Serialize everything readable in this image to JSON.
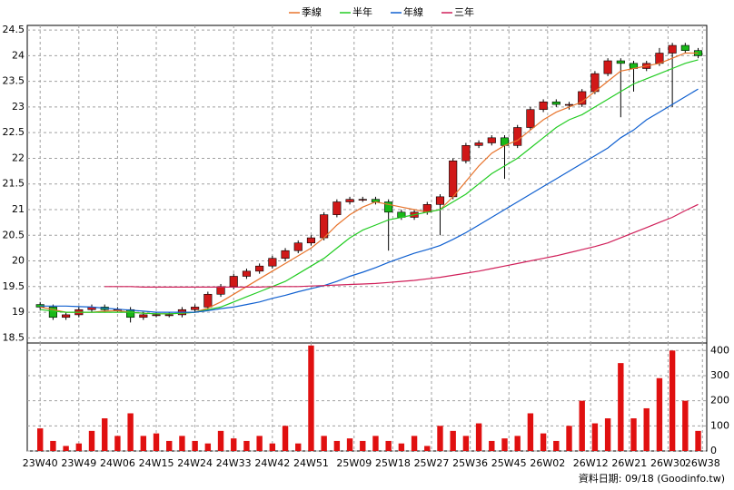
{
  "chart_data": [
    {
      "type": "candlestick",
      "x": [
        0,
        3,
        6,
        9,
        12,
        15,
        18,
        21,
        24,
        27,
        30,
        33,
        36,
        39,
        42,
        45,
        48,
        51,
        54,
        57,
        60,
        63,
        66,
        69,
        72,
        75,
        78,
        81,
        84,
        87,
        90,
        93,
        96,
        99,
        102,
        105,
        108,
        111,
        114,
        117,
        120,
        123,
        126,
        129,
        132,
        135,
        138,
        141,
        144,
        147,
        150,
        153
      ],
      "xlim": [
        -3,
        155
      ],
      "xticks": [
        {
          "value": 0,
          "label": "23W40"
        },
        {
          "value": 9,
          "label": "23W49"
        },
        {
          "value": 18,
          "label": "24W06"
        },
        {
          "value": 27,
          "label": "24W15"
        },
        {
          "value": 36,
          "label": "24W24"
        },
        {
          "value": 45,
          "label": "24W33"
        },
        {
          "value": 54,
          "label": "24W42"
        },
        {
          "value": 63,
          "label": "24W51"
        },
        {
          "value": 73,
          "label": "25W09"
        },
        {
          "value": 82,
          "label": "25W18"
        },
        {
          "value": 91,
          "label": "25W27"
        },
        {
          "value": 100,
          "label": "25W36"
        },
        {
          "value": 109,
          "label": "25W45"
        },
        {
          "value": 118,
          "label": "26W02"
        },
        {
          "value": 128,
          "label": "26W12"
        },
        {
          "value": 137,
          "label": "26W21"
        },
        {
          "value": 146,
          "label": "26W30"
        },
        {
          "value": 154,
          "label": "26W38"
        }
      ],
      "ylim": [
        18.4,
        24.59
      ],
      "yticks": [
        18.5,
        19,
        19.5,
        20,
        20.5,
        21,
        21.5,
        22,
        22.5,
        23,
        23.5,
        24,
        24.5
      ],
      "grid": true,
      "up_color": "#d01818",
      "down_color": "#18b818",
      "open": [
        19.15,
        19.1,
        18.9,
        18.95,
        19.05,
        19.1,
        19.05,
        19.05,
        18.9,
        18.95,
        18.95,
        18.95,
        19.05,
        19.1,
        19.35,
        19.5,
        19.7,
        19.8,
        19.9,
        20.05,
        20.2,
        20.35,
        20.45,
        20.9,
        21.15,
        21.2,
        21.2,
        21.15,
        20.95,
        20.85,
        20.95,
        21.1,
        21.25,
        21.95,
        22.25,
        22.3,
        22.4,
        22.25,
        22.6,
        22.95,
        23.1,
        23.05,
        23.05,
        23.3,
        23.65,
        23.9,
        23.85,
        23.75,
        23.85,
        24.05,
        24.2,
        24.1
      ],
      "high": [
        19.2,
        19.15,
        19.0,
        19.1,
        19.15,
        19.15,
        19.1,
        19.1,
        19.0,
        19.0,
        19.0,
        19.1,
        19.15,
        19.4,
        19.55,
        19.75,
        19.85,
        19.95,
        20.1,
        20.25,
        20.4,
        20.5,
        20.95,
        21.2,
        21.25,
        21.25,
        21.25,
        21.2,
        21.0,
        21.0,
        21.15,
        21.3,
        22.0,
        22.3,
        22.35,
        22.45,
        22.45,
        22.65,
        23.0,
        23.15,
        23.15,
        23.1,
        23.35,
        23.7,
        23.95,
        23.95,
        23.9,
        23.9,
        24.15,
        24.25,
        24.25,
        24.15
      ],
      "low": [
        19.05,
        18.85,
        18.85,
        18.9,
        19.0,
        19.0,
        19.0,
        18.8,
        18.85,
        18.9,
        18.9,
        18.9,
        19.0,
        19.05,
        19.3,
        19.45,
        19.65,
        19.75,
        19.85,
        20.0,
        20.15,
        20.3,
        20.4,
        20.85,
        21.1,
        21.15,
        21.1,
        20.2,
        20.8,
        20.8,
        20.9,
        20.5,
        21.2,
        21.9,
        22.2,
        22.25,
        21.6,
        22.2,
        22.55,
        22.9,
        23.0,
        22.95,
        23.0,
        23.25,
        23.6,
        22.8,
        23.3,
        23.7,
        23.8,
        23.0,
        24.05,
        23.95
      ],
      "close": [
        19.1,
        18.9,
        18.95,
        19.05,
        19.1,
        19.05,
        19.05,
        18.9,
        18.95,
        18.95,
        18.95,
        19.05,
        19.1,
        19.35,
        19.5,
        19.7,
        19.8,
        19.9,
        20.05,
        20.2,
        20.35,
        20.45,
        20.9,
        21.15,
        21.2,
        21.2,
        21.15,
        20.95,
        20.85,
        20.95,
        21.1,
        21.25,
        21.95,
        22.25,
        22.3,
        22.4,
        22.25,
        22.6,
        22.95,
        23.1,
        23.05,
        23.05,
        23.3,
        23.65,
        23.9,
        23.85,
        23.75,
        23.85,
        24.05,
        24.2,
        24.1,
        24.0
      ],
      "series": [
        {
          "name": "季線",
          "color": "#e8742c",
          "values": [
            19.1,
            19.05,
            19.0,
            19.0,
            19.0,
            19.02,
            19.03,
            19.0,
            18.98,
            18.97,
            18.97,
            18.98,
            19.0,
            19.08,
            19.2,
            19.35,
            19.5,
            19.65,
            19.8,
            19.95,
            20.1,
            20.25,
            20.45,
            20.7,
            20.9,
            21.05,
            21.15,
            21.1,
            21.05,
            21.0,
            20.95,
            21.0,
            21.25,
            21.55,
            21.85,
            22.1,
            22.25,
            22.35,
            22.55,
            22.75,
            22.9,
            23.0,
            23.1,
            23.3,
            23.5,
            23.7,
            23.75,
            23.8,
            23.85,
            23.95,
            24.05,
            24.05
          ]
        },
        {
          "name": "半年",
          "color": "#22cc22",
          "values": [
            19.05,
            19.02,
            19.0,
            19.0,
            19.0,
            19.0,
            19.0,
            19.0,
            18.98,
            18.97,
            18.97,
            18.98,
            19.0,
            19.05,
            19.1,
            19.2,
            19.3,
            19.4,
            19.5,
            19.6,
            19.75,
            19.9,
            20.05,
            20.25,
            20.45,
            20.6,
            20.7,
            20.8,
            20.85,
            20.9,
            20.95,
            21.0,
            21.15,
            21.3,
            21.5,
            21.7,
            21.85,
            22.0,
            22.2,
            22.4,
            22.6,
            22.75,
            22.85,
            23.0,
            23.15,
            23.3,
            23.45,
            23.55,
            23.65,
            23.75,
            23.85,
            23.92
          ]
        },
        {
          "name": "年線",
          "color": "#1060d0",
          "values": [
            19.12,
            19.12,
            19.12,
            19.11,
            19.1,
            19.08,
            19.06,
            19.04,
            19.02,
            19.0,
            19.0,
            19.0,
            19.0,
            19.03,
            19.07,
            19.1,
            19.15,
            19.2,
            19.27,
            19.33,
            19.4,
            19.46,
            19.52,
            19.6,
            19.7,
            19.78,
            19.87,
            19.97,
            20.06,
            20.15,
            20.22,
            20.3,
            20.42,
            20.55,
            20.7,
            20.85,
            21.0,
            21.15,
            21.3,
            21.45,
            21.6,
            21.75,
            21.9,
            22.05,
            22.2,
            22.4,
            22.55,
            22.75,
            22.9,
            23.05,
            23.2,
            23.35
          ]
        },
        {
          "name": "三年",
          "color": "#d0205a",
          "values": [
            null,
            null,
            null,
            null,
            null,
            19.5,
            19.5,
            19.5,
            19.49,
            19.49,
            19.49,
            19.49,
            19.49,
            19.49,
            19.49,
            19.49,
            19.49,
            19.49,
            19.5,
            19.5,
            19.5,
            19.51,
            19.52,
            19.53,
            19.54,
            19.55,
            19.56,
            19.58,
            19.6,
            19.62,
            19.65,
            19.68,
            19.72,
            19.76,
            19.8,
            19.85,
            19.9,
            19.95,
            20.0,
            20.05,
            20.1,
            20.16,
            20.22,
            20.28,
            20.35,
            20.45,
            20.55,
            20.65,
            20.75,
            20.85,
            20.98,
            21.1
          ]
        }
      ]
    },
    {
      "type": "bar",
      "x": [
        0,
        3,
        6,
        9,
        12,
        15,
        18,
        21,
        24,
        27,
        30,
        33,
        36,
        39,
        42,
        45,
        48,
        51,
        54,
        57,
        60,
        63,
        66,
        69,
        72,
        75,
        78,
        81,
        84,
        87,
        90,
        93,
        96,
        99,
        102,
        105,
        108,
        111,
        114,
        117,
        120,
        123,
        126,
        129,
        132,
        135,
        138,
        141,
        144,
        147,
        150,
        153
      ],
      "xlim": [
        -3,
        155
      ],
      "values": [
        90,
        40,
        20,
        30,
        80,
        130,
        60,
        150,
        60,
        70,
        40,
        60,
        40,
        30,
        80,
        50,
        40,
        60,
        30,
        100,
        30,
        420,
        60,
        40,
        50,
        40,
        60,
        40,
        30,
        60,
        20,
        100,
        80,
        60,
        110,
        40,
        50,
        60,
        150,
        70,
        40,
        100,
        200,
        110,
        130,
        350,
        130,
        170,
        290,
        400,
        200,
        80
      ],
      "color": "#e01010",
      "ylim": [
        0,
        430
      ],
      "yticks": [
        0,
        100,
        200,
        300,
        400
      ],
      "grid": true
    }
  ],
  "footer": "資料日期: 09/18 (Goodinfo.tw)"
}
